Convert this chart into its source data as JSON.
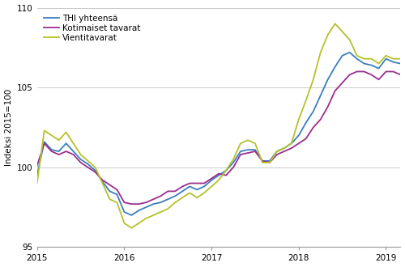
{
  "ylabel": "Indeksi 2015=100",
  "ylim": [
    95,
    110
  ],
  "yticks": [
    95,
    100,
    105,
    110
  ],
  "xlim": [
    0,
    50
  ],
  "xtick_positions": [
    0,
    12,
    24,
    36,
    48
  ],
  "xtick_labels": [
    "2015",
    "2016",
    "2017",
    "2018",
    "2019"
  ],
  "line_colors": [
    "#3a7ebf",
    "#9b2d8e",
    "#b5c229"
  ],
  "line_labels": [
    "THI yhteensä",
    "Kotimaiset tavarat",
    "Vientitavarat"
  ],
  "line_width": 1.3,
  "thi_yhteensa": [
    99.5,
    101.6,
    101.1,
    101.0,
    101.5,
    101.0,
    100.5,
    100.2,
    99.8,
    99.1,
    98.5,
    98.3,
    97.2,
    97.0,
    97.3,
    97.5,
    97.7,
    97.8,
    98.0,
    98.2,
    98.5,
    98.8,
    98.6,
    98.8,
    99.2,
    99.5,
    99.8,
    100.3,
    101.0,
    101.1,
    101.1,
    100.4,
    100.4,
    101.0,
    101.2,
    101.5,
    102.0,
    102.8,
    103.5,
    104.5,
    105.5,
    106.3,
    107.0,
    107.2,
    106.8,
    106.5,
    106.4,
    106.2,
    106.8,
    106.6,
    106.5
  ],
  "kotimaiset_tavarat": [
    100.1,
    101.5,
    101.0,
    100.8,
    101.0,
    100.8,
    100.3,
    100.0,
    99.7,
    99.2,
    98.9,
    98.6,
    97.8,
    97.7,
    97.7,
    97.8,
    98.0,
    98.2,
    98.5,
    98.5,
    98.8,
    99.0,
    99.0,
    99.0,
    99.3,
    99.6,
    99.5,
    100.0,
    100.8,
    100.9,
    101.0,
    100.4,
    100.3,
    100.8,
    101.0,
    101.2,
    101.5,
    101.8,
    102.5,
    103.0,
    103.8,
    104.8,
    105.3,
    105.8,
    106.0,
    106.0,
    105.8,
    105.5,
    106.0,
    106.0,
    105.8
  ],
  "vientitavarat": [
    99.0,
    102.3,
    102.0,
    101.7,
    102.2,
    101.5,
    100.8,
    100.4,
    100.0,
    99.0,
    98.0,
    97.8,
    96.5,
    96.2,
    96.5,
    96.8,
    97.0,
    97.2,
    97.4,
    97.8,
    98.1,
    98.4,
    98.1,
    98.4,
    98.8,
    99.2,
    99.8,
    100.5,
    101.5,
    101.7,
    101.5,
    100.3,
    100.3,
    101.0,
    101.2,
    101.5,
    103.0,
    104.2,
    105.5,
    107.2,
    108.3,
    109.0,
    108.5,
    108.0,
    107.0,
    106.8,
    106.8,
    106.5,
    107.0,
    106.8,
    106.8
  ],
  "grid_color": "#cccccc",
  "bg_color": "#ffffff",
  "spine_color": "#999999",
  "tick_color": "#444444",
  "legend_fontsize": 7.5,
  "axis_fontsize": 7.5,
  "tick_fontsize": 7.5
}
